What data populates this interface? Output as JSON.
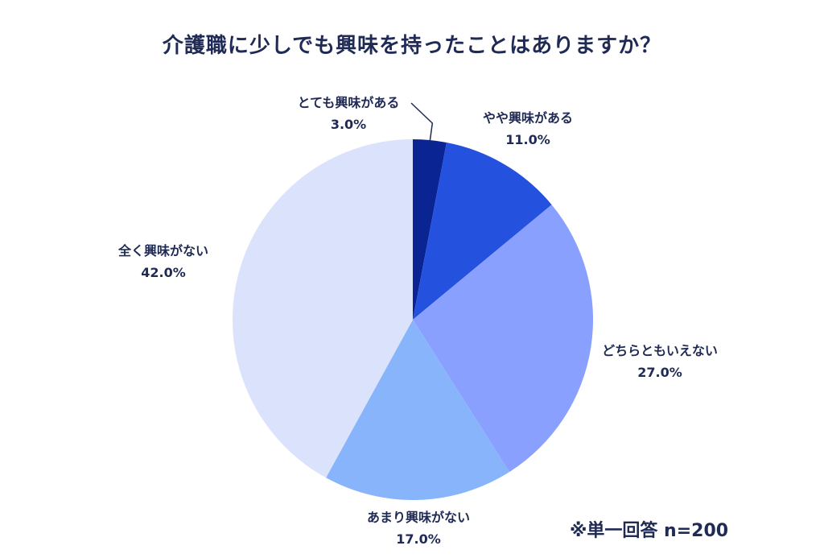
{
  "title": "介護職に少しでも興味を持ったことはありますか？",
  "note": "※単一回答 n=200",
  "chart_data": {
    "type": "pie",
    "title": "介護職に少しでも興味を持ったことはありますか？",
    "start_angle": "12 o'clock",
    "direction": "clockwise",
    "slices": [
      {
        "label": "とても興味がある",
        "value": 3.0,
        "value_label": "3.0%",
        "color": "#0a2494"
      },
      {
        "label": "やや興味がある",
        "value": 11.0,
        "value_label": "11.0%",
        "color": "#2452de"
      },
      {
        "label": "どちらともいえない",
        "value": 27.0,
        "value_label": "27.0%",
        "color": "#8aa0ff"
      },
      {
        "label": "あまり興味がない",
        "value": 17.0,
        "value_label": "17.0%",
        "color": "#88b4fb"
      },
      {
        "label": "全く興味がない",
        "value": 42.0,
        "value_label": "42.0%",
        "color": "#dbe2fb"
      }
    ]
  }
}
